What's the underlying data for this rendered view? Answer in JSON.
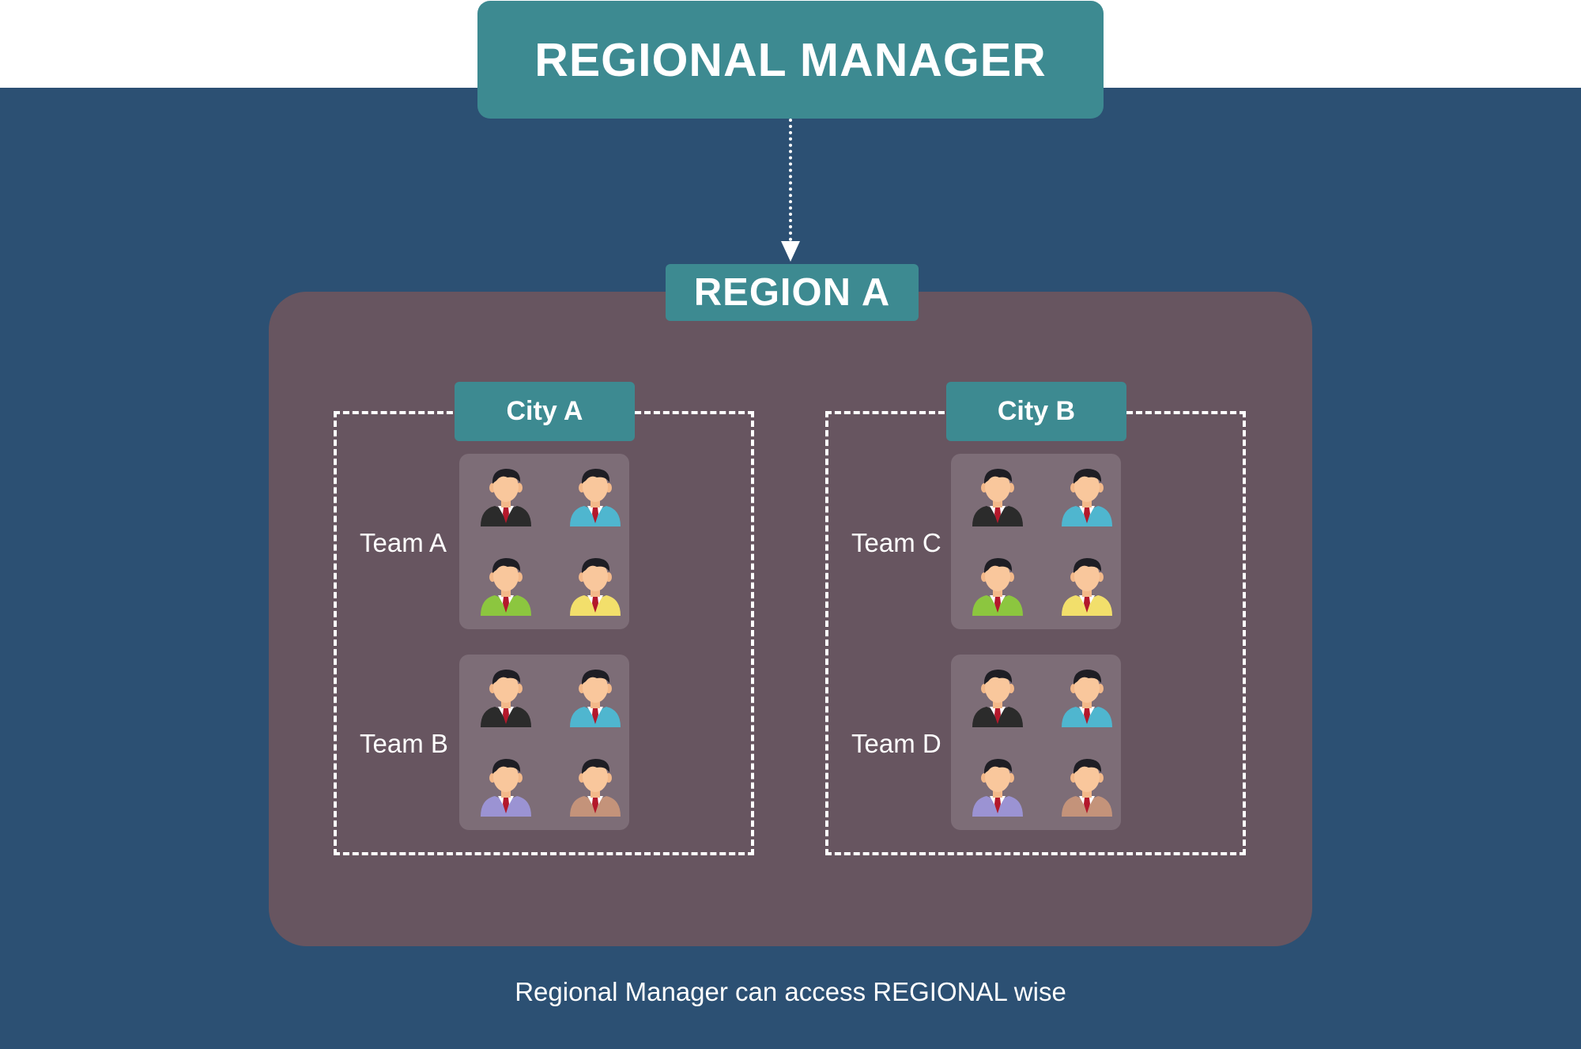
{
  "header": {
    "title": "REGIONAL MANAGER"
  },
  "region": {
    "label": "REGION A"
  },
  "cities": [
    {
      "label": "City A",
      "teams": [
        {
          "label": "Team A",
          "members": [
            "dark",
            "blue",
            "green",
            "yellow"
          ]
        },
        {
          "label": "Team B",
          "members": [
            "dark",
            "blue",
            "purple",
            "tan"
          ]
        }
      ]
    },
    {
      "label": "City B",
      "teams": [
        {
          "label": "Team C",
          "members": [
            "dark",
            "blue",
            "green",
            "yellow"
          ]
        },
        {
          "label": "Team D",
          "members": [
            "dark",
            "blue",
            "purple",
            "tan"
          ]
        }
      ]
    }
  ],
  "footer": {
    "caption": "Regional Manager can access REGIONAL wise"
  },
  "colors": {
    "accent": "#3d8a91",
    "background": "#2c5073",
    "region_panel": "#675560",
    "team_box": "#7d6d77",
    "suits": {
      "dark": "#2b2b2b",
      "blue": "#4fb6cf",
      "green": "#8cc63f",
      "yellow": "#f2df6b",
      "purple": "#9b93d3",
      "tan": "#c4937a"
    }
  },
  "icons": {
    "member": "person-avatar-icon",
    "connector": "down-arrow-icon"
  }
}
